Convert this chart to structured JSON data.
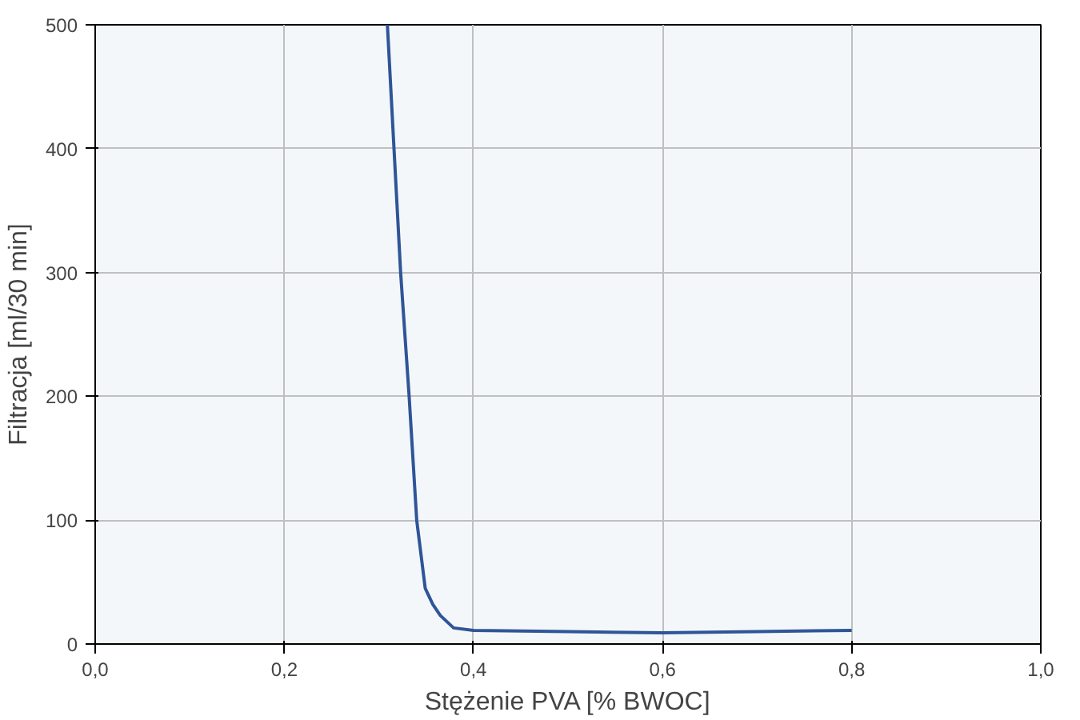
{
  "chart_data": {
    "type": "line",
    "xlabel": "Stężenie PVA [% BWOC]",
    "ylabel": "Filtracja [ml/30 min]",
    "x": [
      0.309,
      0.316,
      0.323,
      0.332,
      0.34,
      0.349,
      0.357,
      0.365,
      0.379,
      0.4,
      0.5,
      0.6,
      0.7,
      0.8
    ],
    "series": [
      {
        "color": "#2f5597",
        "values": [
          500,
          400,
          300,
          200,
          100,
          45,
          32,
          23,
          13,
          11,
          10,
          9,
          10,
          11
        ]
      }
    ],
    "xlim": [
      0,
      1
    ],
    "ylim": [
      0,
      500
    ],
    "xticks": [
      {
        "value": 0,
        "label": "0,0"
      },
      {
        "value": 0.2,
        "label": "0,2"
      },
      {
        "value": 0.4,
        "label": "0,4"
      },
      {
        "value": 0.6,
        "label": "0,6"
      },
      {
        "value": 0.8,
        "label": "0,8"
      },
      {
        "value": 1,
        "label": "1,0"
      }
    ],
    "yticks": [
      0,
      100,
      200,
      300,
      400,
      500
    ],
    "grid": true,
    "marker": "none",
    "line_style": "solid"
  }
}
